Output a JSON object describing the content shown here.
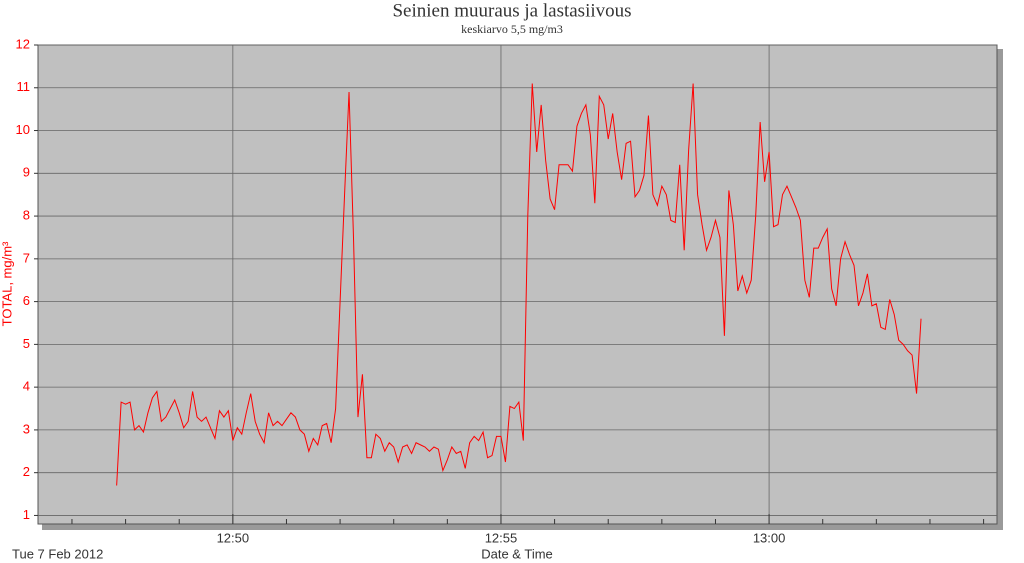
{
  "chart_data": {
    "type": "line",
    "title": "Seinien muuraus  ja lastasiivous",
    "subtitle": "keskiarvo 5,5 mg/m3",
    "y_label": "TOTAL, mg/m³",
    "x_label": "Date & Time",
    "date_label": "Tue 7 Feb 2012",
    "color": "#ff0000",
    "grid": true,
    "ylim": [
      0.8,
      12
    ],
    "yticks": [
      1,
      2,
      3,
      4,
      5,
      6,
      7,
      8,
      9,
      10,
      11,
      12
    ],
    "xlim": [
      "12:46:22",
      "13:04:15"
    ],
    "xticks": [
      "12:50",
      "12:55",
      "13:00"
    ],
    "xminorticks": [
      "12:47",
      "12:48",
      "12:49",
      "12:51",
      "12:52",
      "12:53",
      "12:54",
      "12:56",
      "12:57",
      "12:58",
      "12:59",
      "13:01",
      "13:02",
      "13:03",
      "13:04"
    ],
    "x": [
      "12:47:50",
      "12:47:55",
      "12:48:00",
      "12:48:05",
      "12:48:10",
      "12:48:15",
      "12:48:20",
      "12:48:25",
      "12:48:30",
      "12:48:35",
      "12:48:40",
      "12:48:45",
      "12:48:50",
      "12:48:55",
      "12:49:00",
      "12:49:05",
      "12:49:10",
      "12:49:15",
      "12:49:20",
      "12:49:25",
      "12:49:30",
      "12:49:35",
      "12:49:40",
      "12:49:45",
      "12:49:50",
      "12:49:55",
      "12:50:00",
      "12:50:05",
      "12:50:10",
      "12:50:15",
      "12:50:20",
      "12:50:25",
      "12:50:30",
      "12:50:35",
      "12:50:40",
      "12:50:45",
      "12:50:50",
      "12:50:55",
      "12:51:00",
      "12:51:05",
      "12:51:10",
      "12:51:15",
      "12:51:20",
      "12:51:25",
      "12:51:30",
      "12:51:35",
      "12:51:40",
      "12:51:45",
      "12:51:50",
      "12:51:55",
      "12:52:00",
      "12:52:05",
      "12:52:10",
      "12:52:15",
      "12:52:20",
      "12:52:25",
      "12:52:30",
      "12:52:35",
      "12:52:40",
      "12:52:45",
      "12:52:50",
      "12:52:55",
      "12:53:00",
      "12:53:05",
      "12:53:10",
      "12:53:15",
      "12:53:20",
      "12:53:25",
      "12:53:30",
      "12:53:35",
      "12:53:40",
      "12:53:45",
      "12:53:50",
      "12:53:55",
      "12:54:00",
      "12:54:05",
      "12:54:10",
      "12:54:15",
      "12:54:20",
      "12:54:25",
      "12:54:30",
      "12:54:35",
      "12:54:40",
      "12:54:45",
      "12:54:50",
      "12:54:55",
      "12:55:00",
      "12:55:05",
      "12:55:10",
      "12:55:15",
      "12:55:20",
      "12:55:25",
      "12:55:30",
      "12:55:35",
      "12:55:40",
      "12:55:45",
      "12:55:50",
      "12:55:55",
      "12:56:00",
      "12:56:05",
      "12:56:10",
      "12:56:15",
      "12:56:20",
      "12:56:25",
      "12:56:30",
      "12:56:35",
      "12:56:40",
      "12:56:45",
      "12:56:50",
      "12:56:55",
      "12:57:00",
      "12:57:05",
      "12:57:10",
      "12:57:15",
      "12:57:20",
      "12:57:25",
      "12:57:30",
      "12:57:35",
      "12:57:40",
      "12:57:45",
      "12:57:50",
      "12:57:55",
      "12:58:00",
      "12:58:05",
      "12:58:10",
      "12:58:15",
      "12:58:20",
      "12:58:25",
      "12:58:30",
      "12:58:35",
      "12:58:40",
      "12:58:45",
      "12:58:50",
      "12:58:55",
      "12:59:00",
      "12:59:05",
      "12:59:10",
      "12:59:15",
      "12:59:20",
      "12:59:25",
      "12:59:30",
      "12:59:35",
      "12:59:40",
      "12:59:45",
      "12:59:50",
      "12:59:55",
      "13:00:00",
      "13:00:05",
      "13:00:10",
      "13:00:15",
      "13:00:20",
      "13:00:25",
      "13:00:30",
      "13:00:35",
      "13:00:40",
      "13:00:45",
      "13:00:50",
      "13:00:55",
      "13:01:00",
      "13:01:05",
      "13:01:10",
      "13:01:15",
      "13:01:20",
      "13:01:25",
      "13:01:30",
      "13:01:35",
      "13:01:40",
      "13:01:45",
      "13:01:50",
      "13:01:55",
      "13:02:00",
      "13:02:05",
      "13:02:10",
      "13:02:15",
      "13:02:20",
      "13:02:25",
      "13:02:30",
      "13:02:35",
      "13:02:40",
      "13:02:45",
      "13:02:50"
    ],
    "values": [
      1.7,
      3.65,
      3.6,
      3.65,
      3.0,
      3.1,
      2.95,
      3.4,
      3.75,
      3.9,
      3.2,
      3.3,
      3.5,
      3.7,
      3.4,
      3.05,
      3.2,
      3.9,
      3.3,
      3.2,
      3.3,
      3.05,
      2.8,
      3.45,
      3.3,
      3.45,
      2.75,
      3.05,
      2.9,
      3.4,
      3.85,
      3.2,
      2.9,
      2.7,
      3.4,
      3.1,
      3.2,
      3.1,
      3.25,
      3.4,
      3.3,
      3.0,
      2.9,
      2.5,
      2.8,
      2.65,
      3.1,
      3.15,
      2.7,
      3.5,
      6.0,
      8.5,
      10.9,
      7.5,
      3.3,
      4.3,
      2.35,
      2.35,
      2.9,
      2.8,
      2.5,
      2.7,
      2.6,
      2.25,
      2.6,
      2.65,
      2.45,
      2.7,
      2.65,
      2.6,
      2.5,
      2.6,
      2.55,
      2.05,
      2.3,
      2.6,
      2.45,
      2.5,
      2.1,
      2.7,
      2.85,
      2.75,
      2.95,
      2.35,
      2.4,
      2.85,
      2.85,
      2.25,
      3.55,
      3.5,
      3.65,
      2.75,
      8.0,
      11.1,
      9.5,
      10.6,
      9.3,
      8.4,
      8.15,
      9.2,
      9.2,
      9.2,
      9.05,
      10.1,
      10.4,
      10.6,
      9.9,
      8.3,
      10.8,
      10.6,
      9.8,
      10.4,
      9.5,
      8.85,
      9.7,
      9.75,
      8.45,
      8.6,
      8.95,
      10.35,
      8.5,
      8.25,
      8.7,
      8.5,
      7.9,
      7.85,
      9.2,
      7.2,
      9.55,
      11.1,
      8.5,
      7.8,
      7.2,
      7.5,
      7.9,
      7.5,
      5.2,
      8.6,
      7.8,
      6.25,
      6.6,
      6.2,
      6.5,
      8.0,
      10.2,
      8.8,
      9.5,
      7.75,
      7.8,
      8.5,
      8.7,
      8.45,
      8.2,
      7.9,
      6.5,
      6.1,
      7.25,
      7.25,
      7.5,
      7.7,
      6.3,
      5.9,
      7.0,
      7.4,
      7.1,
      6.85,
      5.9,
      6.2,
      6.65,
      5.9,
      5.95,
      5.4,
      5.35,
      6.05,
      5.7,
      5.1,
      5.0,
      4.85,
      4.75,
      3.85,
      5.6
    ]
  }
}
